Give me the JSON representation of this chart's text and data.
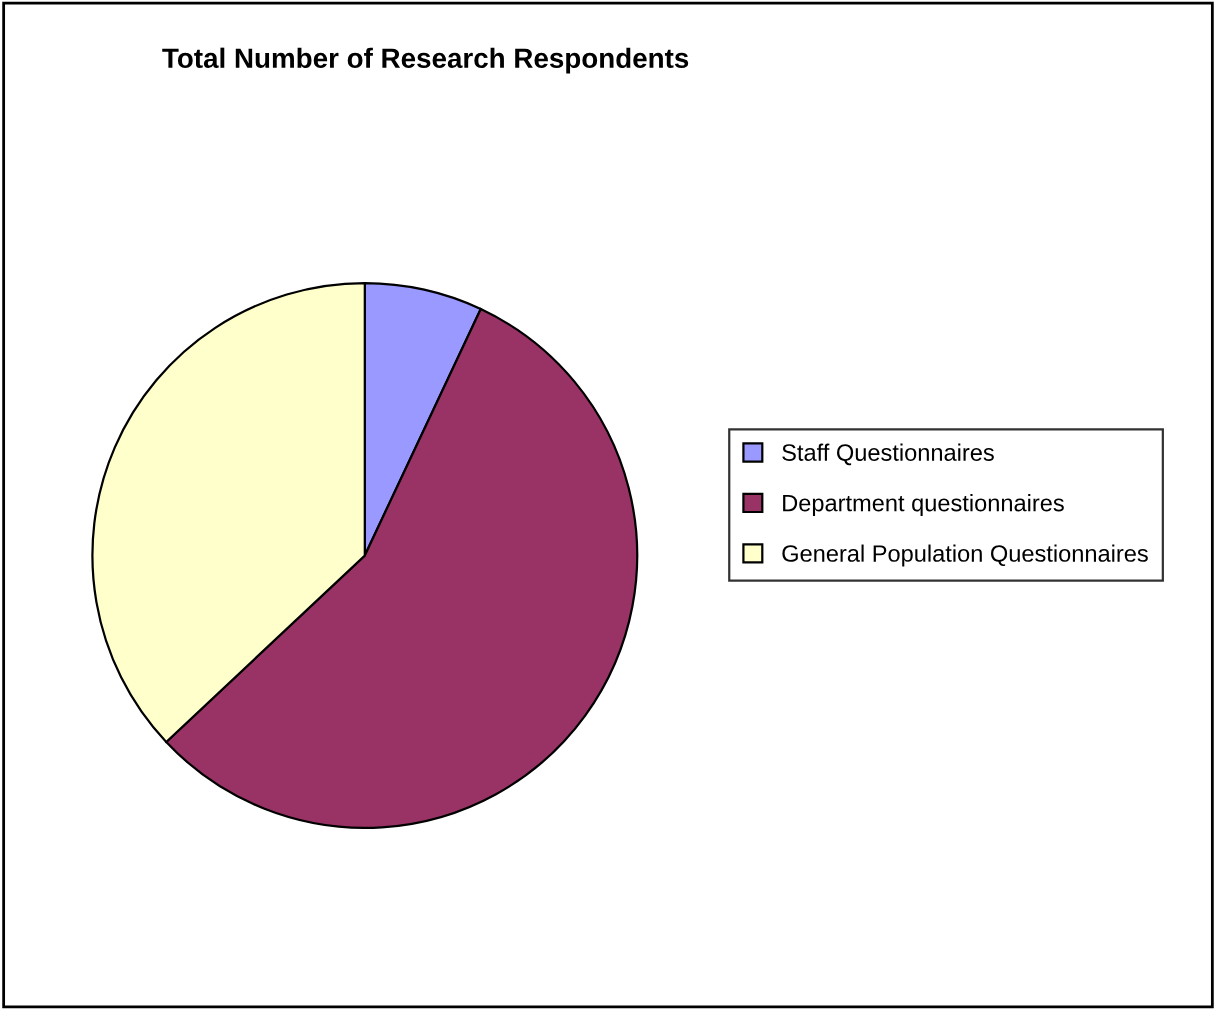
{
  "chart_data": {
    "type": "pie",
    "title": "Total Number of Research Respondents",
    "categories": [
      "Staff Questionnaires",
      "Department questionnaires",
      "General Population Questionnaires"
    ],
    "values": [
      7,
      56,
      37
    ],
    "colors": [
      "#9999ff",
      "#993366",
      "#ffffcc"
    ],
    "legend": "right"
  }
}
